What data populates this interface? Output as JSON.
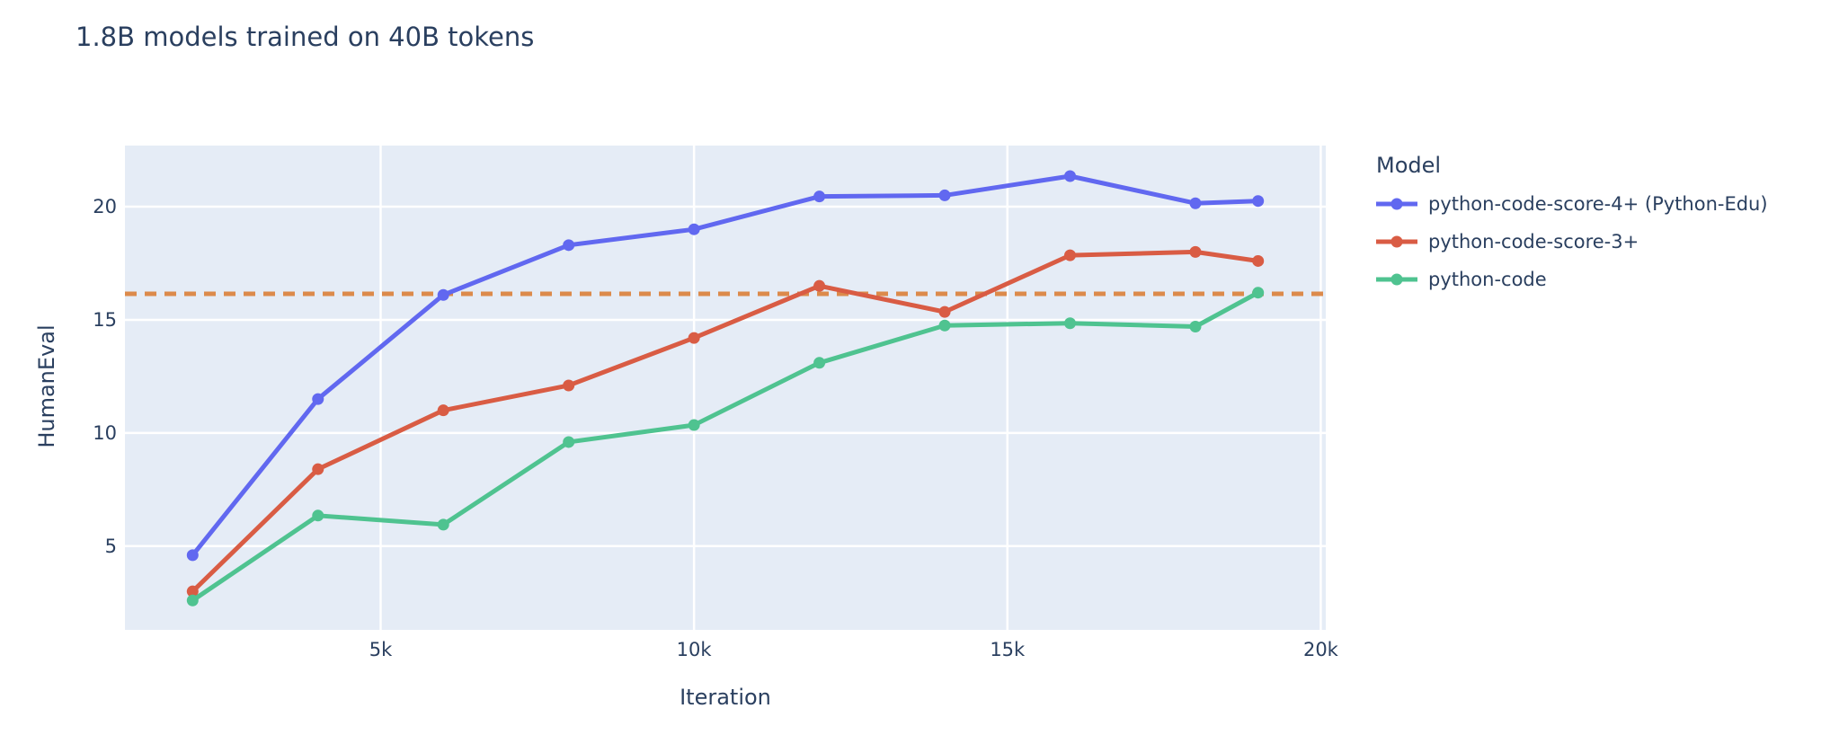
{
  "chart_data": {
    "type": "line",
    "title": "1.8B models trained on 40B tokens",
    "xlabel": "Iteration",
    "ylabel": "HumanEval",
    "legend_title": "Model",
    "legend_position": "right",
    "grid": true,
    "x": [
      2000,
      4000,
      6000,
      8000,
      10000,
      12000,
      14000,
      16000,
      18000,
      19000
    ],
    "series": [
      {
        "name": "python-code-score-4+ (Python-Edu)",
        "color": "#6168F0",
        "values": [
          4.6,
          11.5,
          16.1,
          18.3,
          19.0,
          20.45,
          20.5,
          21.35,
          20.15,
          20.25
        ]
      },
      {
        "name": "python-code-score-3+",
        "color": "#D95C44",
        "values": [
          3.0,
          8.4,
          11.0,
          12.1,
          14.2,
          16.5,
          15.35,
          17.85,
          18.0,
          17.6
        ]
      },
      {
        "name": "python-code",
        "color": "#4FC390",
        "values": [
          2.6,
          6.35,
          5.95,
          9.6,
          10.35,
          13.1,
          14.75,
          14.85,
          14.7,
          16.2
        ]
      }
    ],
    "reference_line": {
      "y": 16.15,
      "color": "#DC8A4B",
      "style": "dashed"
    },
    "x_ticks": [
      {
        "value": 5000,
        "label": "5k"
      },
      {
        "value": 10000,
        "label": "10k"
      },
      {
        "value": 15000,
        "label": "15k"
      },
      {
        "value": 20000,
        "label": "20k"
      }
    ],
    "y_ticks": [
      {
        "value": 5,
        "label": "5"
      },
      {
        "value": 10,
        "label": "10"
      },
      {
        "value": 15,
        "label": "15"
      },
      {
        "value": 20,
        "label": "20"
      }
    ],
    "x_range": [
      920,
      20080
    ],
    "y_range": [
      1.3,
      22.7
    ],
    "colors": {
      "plot_background": "#E5ECF6",
      "grid": "#FFFFFF",
      "text": "#2A3F5F"
    }
  }
}
